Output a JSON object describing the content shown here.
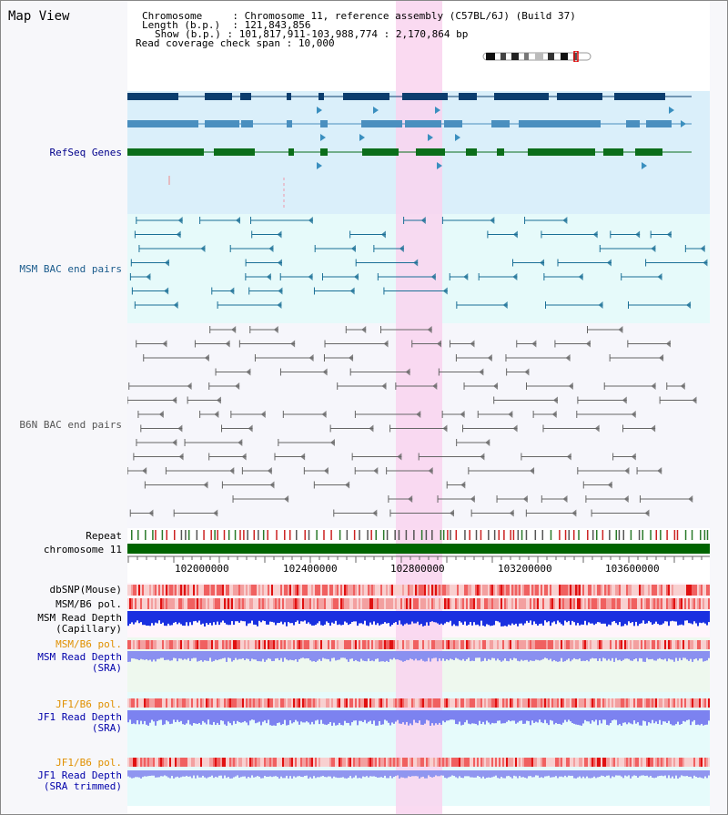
{
  "app": {
    "title": "Map View"
  },
  "info": {
    "chromosome_label": "Chromosome",
    "chromosome_value": "Chromosome 11, reference assembly (C57BL/6J) (Build 37)",
    "length_label": "Length (b.p.)",
    "length_value": "121,843,856",
    "show_label": "Show (b.p.)",
    "show_value": "101,817,911-103,988,774 : 2,170,864 bp",
    "coverage_label": "Read coverage check span",
    "coverage_value": "10,000"
  },
  "tracks": {
    "refseq": "RefSeq Genes",
    "msm_bac": "MSM BAC end pairs",
    "b6n_bac": "B6N BAC end pairs",
    "repeat": "Repeat",
    "chromosome": "chromosome 11",
    "dbsnp": "dbSNP(Mouse)",
    "msm_b6_pol": "MSM/B6 pol.",
    "msm_depth_cap_1": "MSM Read Depth",
    "msm_depth_cap_2": "(Capillary)",
    "msm_b6_pol_sra": "MSM/B6 pol.",
    "msm_depth_sra_1": "MSM Read Depth",
    "msm_depth_sra_2": "(SRA)",
    "jf1_b6_pol": "JF1/B6 pol.",
    "jf1_depth_sra_1": "JF1 Read Depth",
    "jf1_depth_sra_2": "(SRA)",
    "jf1_b6_pol_trim": "JF1/B6 pol.",
    "jf1_depth_trim_1": "JF1 Read Depth",
    "jf1_depth_trim_2": "(SRA trimmed)"
  },
  "axis": {
    "ticks": [
      "102000000",
      "102400000",
      "102800000",
      "103200000",
      "103600000"
    ]
  },
  "colors": {
    "refseq_label": "#00008b",
    "msm_label": "#1a5b8c",
    "b6n_label": "#555555",
    "orange_label": "#e09000",
    "blue_label": "#0000aa",
    "highlight": "#f9d4ee",
    "chromosome_bar": "#006400"
  }
}
